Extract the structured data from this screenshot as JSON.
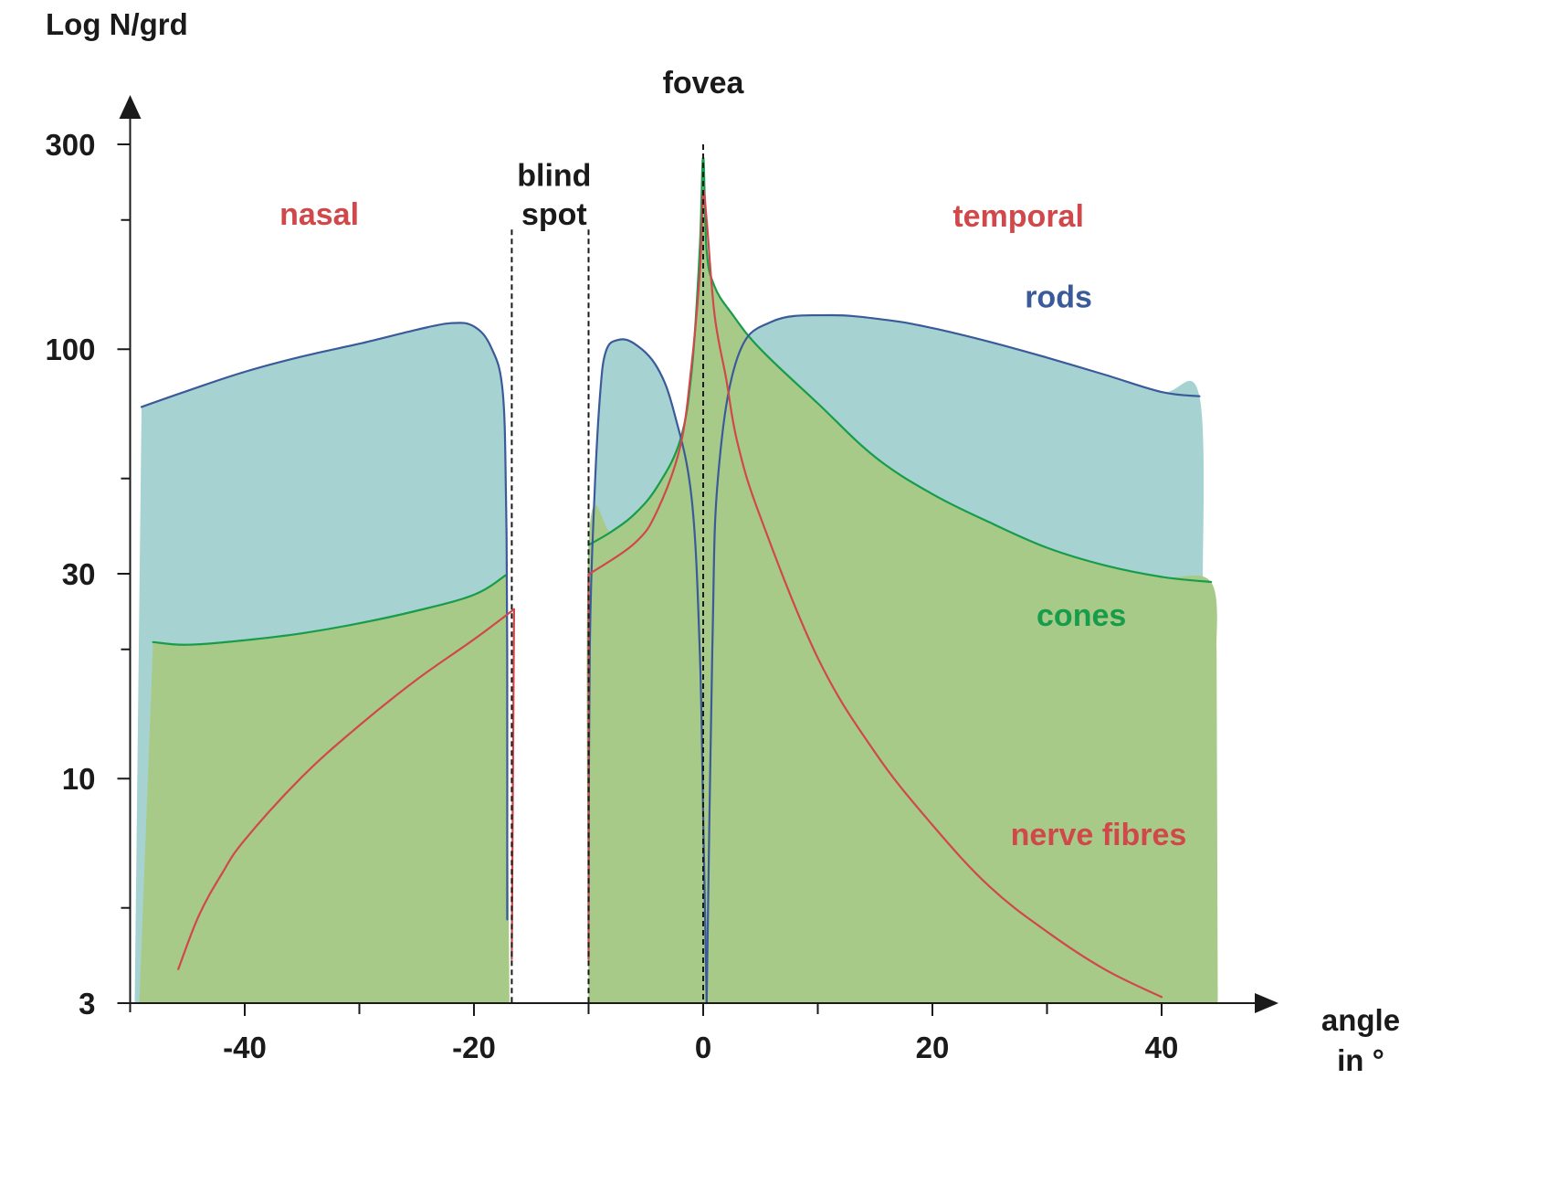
{
  "chart_data": {
    "type": "area",
    "title": "",
    "ylabel": "Log N/grd",
    "xlabel_lines": [
      "angle",
      "in °"
    ],
    "yscale": "log",
    "ylim": [
      3,
      300
    ],
    "xlim": [
      -50,
      45
    ],
    "yticks_major": [
      3,
      10,
      30,
      100,
      300
    ],
    "yticks_minor": [
      5,
      20,
      50,
      200
    ],
    "ytick_labels": [
      "3",
      "10",
      "30",
      "100",
      "300"
    ],
    "xticks_major": [
      -40,
      -20,
      0,
      20,
      40
    ],
    "xticks_minor": [
      -30,
      -10,
      10,
      30
    ],
    "xtick_labels": [
      "-40",
      "-20",
      "0",
      "20",
      "40"
    ],
    "annotations": [
      {
        "text": "nasal",
        "x": -33.5,
        "y": 195,
        "color": "#d0484a"
      },
      {
        "text": "blind",
        "x": -13,
        "y": 240,
        "color": "#1a1a1a"
      },
      {
        "text": "spot",
        "x": -13,
        "y": 195,
        "color": "#1a1a1a"
      },
      {
        "text": "fovea",
        "x": 0,
        "y": 395,
        "color": "#1a1a1a"
      },
      {
        "text": "temporal",
        "x": 27.5,
        "y": 193,
        "color": "#d0484a"
      },
      {
        "text": "rods",
        "x": 31,
        "y": 125,
        "color": "#3a5a9a"
      },
      {
        "text": "cones",
        "x": 33,
        "y": 22.7,
        "color": "#169c4a"
      },
      {
        "text": "nerve fibres",
        "x": 34.5,
        "y": 7.0,
        "color": "#d0484a"
      }
    ],
    "vlines": [
      -16.7,
      -10,
      0
    ],
    "colors": {
      "rods_line": "#3a5a9a",
      "rods_fill": "#a7d2d2",
      "cones_line": "#169c4a",
      "cones_fill": "#a8ca88",
      "nerve_line": "#d0484a",
      "axis": "#1a1a1a"
    },
    "series": [
      {
        "name": "rods",
        "segments": [
          [
            [
              -49,
              73.4
            ],
            [
              -45,
              80.0
            ],
            [
              -40,
              88.6
            ],
            [
              -35,
              96.2
            ],
            [
              -30,
              103
            ],
            [
              -25,
              111
            ],
            [
              -22,
              115
            ],
            [
              -20,
              113
            ],
            [
              -18.5,
              101
            ],
            [
              -17.5,
              80.0
            ],
            [
              -17.2,
              44.7
            ],
            [
              -17.1,
              20.0
            ],
            [
              -17.1,
              4.7
            ]
          ],
          [
            [
              -10,
              4.7
            ],
            [
              -9.9,
              20.0
            ],
            [
              -9.5,
              44.7
            ],
            [
              -9,
              78.0
            ],
            [
              -8.5,
              98.6
            ],
            [
              -7.5,
              105
            ],
            [
              -6,
              103
            ],
            [
              -4,
              90.6
            ],
            [
              -2.5,
              70.7
            ],
            [
              -1,
              44.7
            ],
            [
              -0.3,
              20.0
            ],
            [
              0,
              8.2
            ],
            [
              0.3,
              3.0
            ]
          ],
          [
            [
              0.3,
              3.0
            ],
            [
              0.8,
              20.0
            ],
            [
              1.3,
              50.5
            ],
            [
              3,
              95.7
            ],
            [
              6,
              116
            ],
            [
              11,
              120
            ],
            [
              16,
              117
            ],
            [
              20,
              112
            ],
            [
              25,
              104
            ],
            [
              30,
              95.6
            ],
            [
              35,
              87.3
            ],
            [
              40,
              79.5
            ],
            [
              43.3,
              77.7
            ]
          ]
        ]
      },
      {
        "name": "cones",
        "segments": [
          [
            [
              -48,
              20.8
            ],
            [
              -45,
              20.5
            ],
            [
              -40,
              21.0
            ],
            [
              -35,
              21.8
            ],
            [
              -30,
              23.0
            ],
            [
              -25,
              24.6
            ],
            [
              -20,
              26.8
            ],
            [
              -17.2,
              29.8
            ]
          ],
          [
            [
              -10,
              35.0
            ],
            [
              -8,
              37.6
            ],
            [
              -6,
              41.3
            ],
            [
              -4,
              47.9
            ],
            [
              -2,
              61.5
            ],
            [
              -1,
              89.3
            ],
            [
              -0.3,
              170
            ],
            [
              0,
              280
            ],
            [
              0.3,
              170
            ],
            [
              1,
              140
            ],
            [
              2.5,
              121
            ],
            [
              5,
              100
            ],
            [
              10,
              74.8
            ],
            [
              15,
              56.1
            ],
            [
              20,
              46.0
            ],
            [
              25,
              39.5
            ],
            [
              30,
              34.5
            ],
            [
              35,
              31.4
            ],
            [
              40,
              29.5
            ],
            [
              44.3,
              28.7
            ]
          ]
        ]
      },
      {
        "name": "nerve fibres",
        "segments": [
          [
            [
              -45.8,
              3.6
            ],
            [
              -44,
              4.8
            ],
            [
              -42,
              6.0
            ],
            [
              -40,
              7.2
            ],
            [
              -35,
              10.1
            ],
            [
              -30,
              13.3
            ],
            [
              -25,
              17.0
            ],
            [
              -20,
              21.1
            ],
            [
              -16.5,
              24.8
            ]
          ],
          [
            [
              -16.5,
              24.8
            ],
            [
              -16.7,
              3.8
            ]
          ],
          [
            [
              -10,
              3.8
            ],
            [
              -10,
              29.9
            ]
          ],
          [
            [
              -10,
              29.9
            ],
            [
              -6,
              35.3
            ],
            [
              -4,
              42.1
            ],
            [
              -2,
              59.4
            ],
            [
              -1,
              92.8
            ],
            [
              -0.3,
              150
            ],
            [
              0,
              230
            ],
            [
              0.3,
              200
            ],
            [
              1,
              120
            ],
            [
              2,
              85.5
            ],
            [
              3,
              60.5
            ],
            [
              5,
              40.6
            ],
            [
              10,
              19.1
            ],
            [
              15,
              11.5
            ],
            [
              20,
              7.8
            ],
            [
              25,
              5.6
            ],
            [
              30,
              4.4
            ],
            [
              35,
              3.6
            ],
            [
              40,
              3.1
            ]
          ]
        ]
      }
    ]
  }
}
